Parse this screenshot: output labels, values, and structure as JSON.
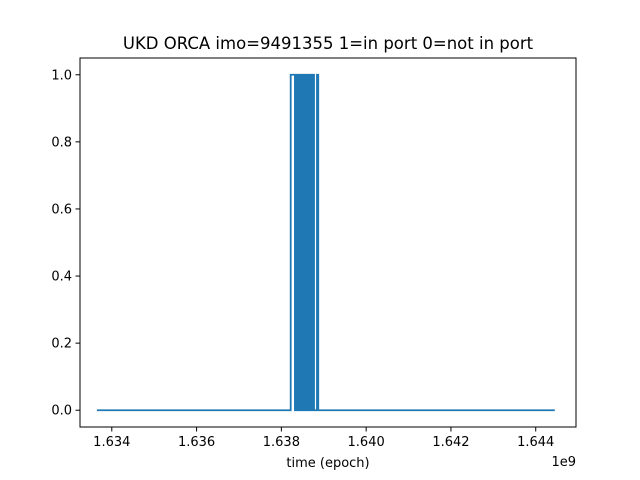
{
  "chart_data": {
    "type": "line",
    "title": "UKD ORCA imo=9491355 1=in port 0=not in port",
    "xlabel": "time (epoch)",
    "ylabel": "",
    "x_offset_label": "1e9",
    "x_scale": 1000000000.0,
    "xlim": [
      1.63325,
      1.64495
    ],
    "ylim": [
      -0.05,
      1.05
    ],
    "x_ticks": [
      1.634,
      1.636,
      1.638,
      1.64,
      1.642,
      1.644
    ],
    "x_tick_labels": [
      "1.634",
      "1.636",
      "1.638",
      "1.640",
      "1.642",
      "1.644"
    ],
    "y_ticks": [
      0.0,
      0.2,
      0.4,
      0.6,
      0.8,
      1.0
    ],
    "y_tick_labels": [
      "0.0",
      "0.2",
      "0.4",
      "0.6",
      "0.8",
      "1.0"
    ],
    "grid": false,
    "legend": "none",
    "series": [
      {
        "color": "#1f77b4",
        "points": [
          [
            1.63365,
            0
          ],
          [
            1.63822,
            0
          ],
          [
            1.63822,
            1
          ],
          [
            1.63832,
            1
          ],
          [
            1.63832,
            0
          ],
          [
            1.63835,
            0
          ],
          [
            1.63835,
            1
          ],
          [
            1.63838,
            1
          ],
          [
            1.63838,
            0
          ],
          [
            1.6384,
            0
          ],
          [
            1.6384,
            1
          ],
          [
            1.63843,
            1
          ],
          [
            1.63843,
            0
          ],
          [
            1.63845,
            0
          ],
          [
            1.63845,
            1
          ],
          [
            1.63848,
            1
          ],
          [
            1.63848,
            0
          ],
          [
            1.6385,
            0
          ],
          [
            1.6385,
            1
          ],
          [
            1.63853,
            1
          ],
          [
            1.63853,
            0
          ],
          [
            1.63855,
            0
          ],
          [
            1.63855,
            1
          ],
          [
            1.63858,
            1
          ],
          [
            1.63858,
            0
          ],
          [
            1.63861,
            0
          ],
          [
            1.63861,
            1
          ],
          [
            1.63864,
            1
          ],
          [
            1.63864,
            0
          ],
          [
            1.63866,
            0
          ],
          [
            1.63866,
            1
          ],
          [
            1.63869,
            1
          ],
          [
            1.63869,
            0
          ],
          [
            1.63871,
            0
          ],
          [
            1.63871,
            1
          ],
          [
            1.63873,
            1
          ],
          [
            1.63873,
            0
          ],
          [
            1.63875,
            0
          ],
          [
            1.63875,
            1
          ],
          [
            1.63877,
            1
          ],
          [
            1.63877,
            0
          ],
          [
            1.63884,
            0
          ],
          [
            1.63884,
            1
          ],
          [
            1.63887,
            1
          ],
          [
            1.63887,
            0
          ],
          [
            1.64445,
            0
          ]
        ]
      }
    ]
  }
}
